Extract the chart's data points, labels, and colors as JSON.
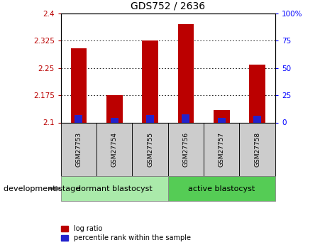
{
  "title": "GDS752 / 2636",
  "samples": [
    "GSM27753",
    "GSM27754",
    "GSM27755",
    "GSM27756",
    "GSM27757",
    "GSM27758"
  ],
  "log_ratio": [
    2.305,
    2.175,
    2.325,
    2.37,
    2.135,
    2.26
  ],
  "percentile_rank_top": [
    2.12,
    2.113,
    2.12,
    2.123,
    2.113,
    2.118
  ],
  "percentile_rank_bot": [
    2.1,
    2.1,
    2.1,
    2.1,
    2.1,
    2.1
  ],
  "bar_bottom": 2.1,
  "ylim": [
    2.1,
    2.4
  ],
  "yticks_left": [
    2.1,
    2.175,
    2.25,
    2.325,
    2.4
  ],
  "ytick_labels_left": [
    "2.1",
    "2.175",
    "2.25",
    "2.325",
    "2.4"
  ],
  "yticks_right_pct": [
    0,
    25,
    50,
    75,
    100
  ],
  "ytick_labels_right": [
    "0",
    "25",
    "50",
    "75",
    "100%"
  ],
  "groups": [
    {
      "label": "dormant blastocyst",
      "indices": [
        0,
        1,
        2
      ],
      "color": "#aaeaaa"
    },
    {
      "label": "active blastocyst",
      "indices": [
        3,
        4,
        5
      ],
      "color": "#55cc55"
    }
  ],
  "group_label": "development stage",
  "bar_color_red": "#bb0000",
  "bar_color_blue": "#2222cc",
  "bar_width": 0.45,
  "blue_bar_width": 0.22,
  "legend_labels": [
    "log ratio",
    "percentile rank within the sample"
  ],
  "title_fontsize": 10,
  "tick_fontsize": 7.5,
  "sample_fontsize": 6.5,
  "group_fontsize": 8,
  "legend_fontsize": 7
}
